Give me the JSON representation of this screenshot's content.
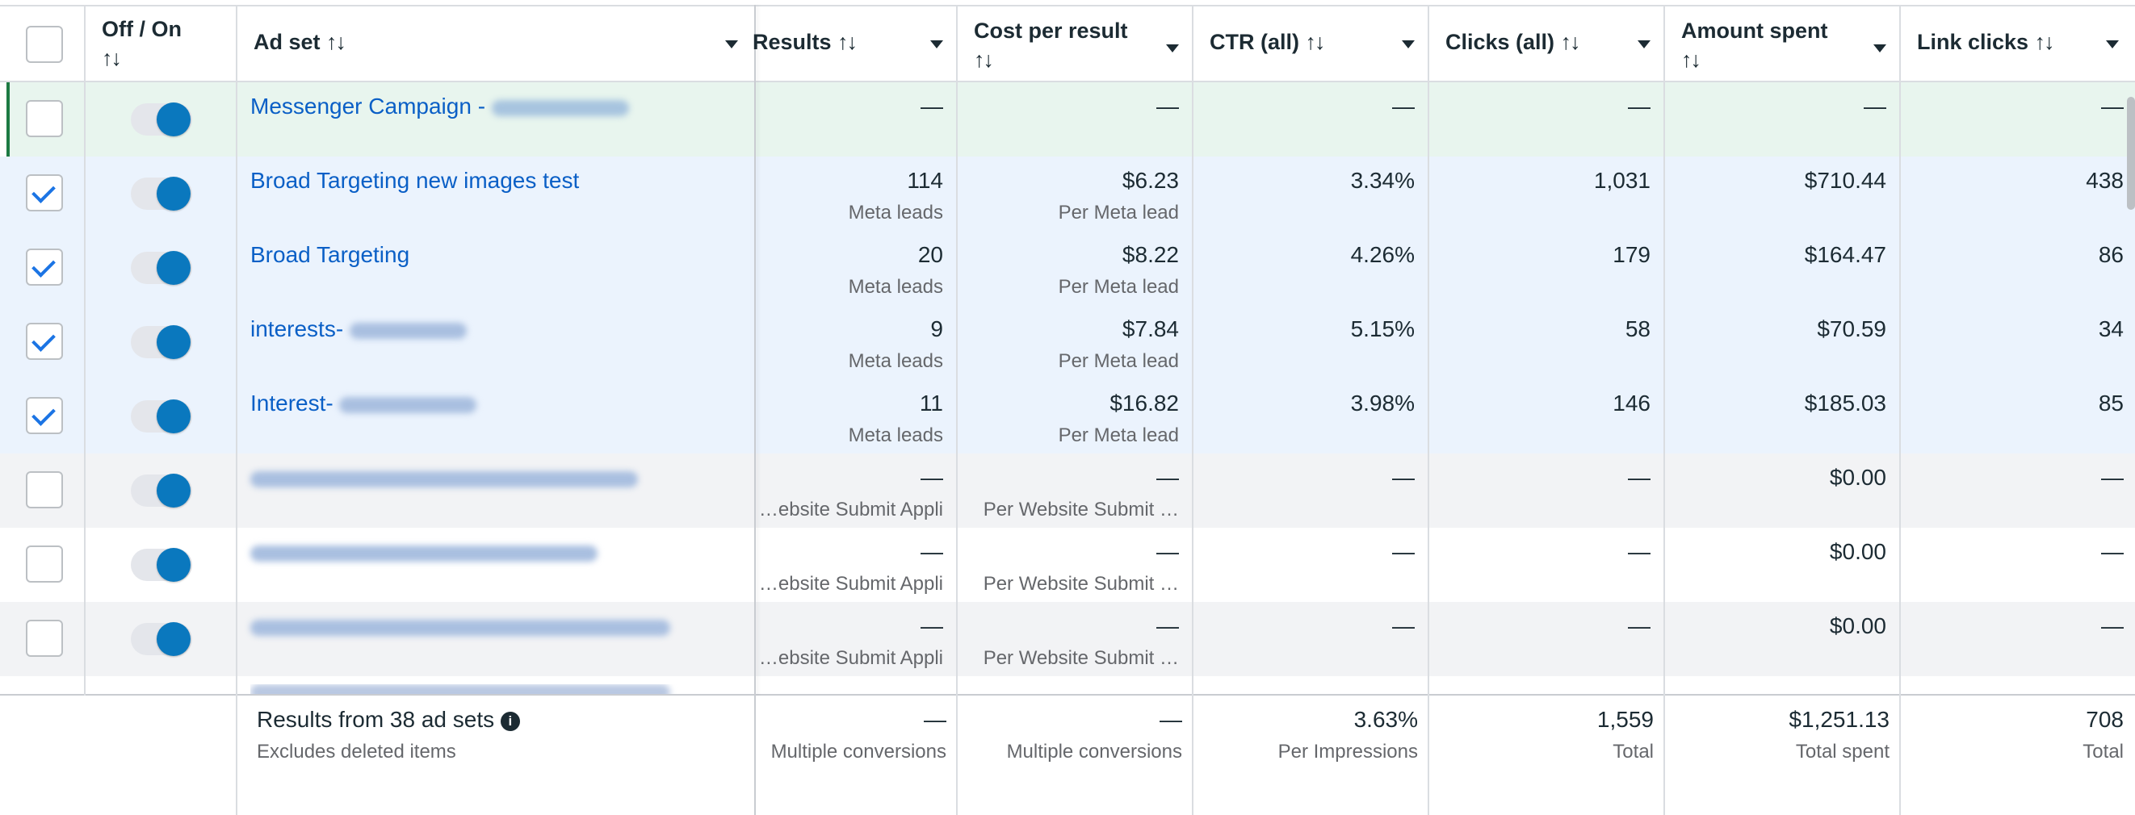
{
  "columns": {
    "off_on": "Off / On",
    "ad_set": "Ad set",
    "results": "Results",
    "cost_per_result": "Cost per result",
    "ctr": "CTR (all)",
    "clicks": "Clicks (all)",
    "amount_spent": "Amount spent",
    "link_clicks": "Link clicks",
    "sort_glyph": "↑↓"
  },
  "rows": [
    {
      "name": "Messenger Campaign - ",
      "results": "—",
      "results_sub": "",
      "cpr": "—",
      "cpr_sub": "",
      "ctr": "—",
      "clicks": "—",
      "spent": "—",
      "link": "—",
      "checked": false
    },
    {
      "name": "Broad Targeting new images test",
      "results": "114",
      "results_sub": "Meta leads",
      "cpr": "$6.23",
      "cpr_sub": "Per Meta lead",
      "ctr": "3.34%",
      "clicks": "1,031",
      "spent": "$710.44",
      "link": "438",
      "checked": true
    },
    {
      "name": "Broad Targeting",
      "results": "20",
      "results_sub": "Meta leads",
      "cpr": "$8.22",
      "cpr_sub": "Per Meta lead",
      "ctr": "4.26%",
      "clicks": "179",
      "spent": "$164.47",
      "link": "86",
      "checked": true
    },
    {
      "name": "interests- ",
      "results": "9",
      "results_sub": "Meta leads",
      "cpr": "$7.84",
      "cpr_sub": "Per Meta lead",
      "ctr": "5.15%",
      "clicks": "58",
      "spent": "$70.59",
      "link": "34",
      "checked": true
    },
    {
      "name": "Interest- ",
      "results": "11",
      "results_sub": "Meta leads",
      "cpr": "$16.82",
      "cpr_sub": "Per Meta lead",
      "ctr": "3.98%",
      "clicks": "146",
      "spent": "$185.03",
      "link": "85",
      "checked": true
    },
    {
      "name": "",
      "results": "—",
      "results_sub": "ebsite Submit Appli…",
      "cpr": "—",
      "cpr_sub": "Per Website Submit …",
      "ctr": "—",
      "clicks": "—",
      "spent": "$0.00",
      "link": "—",
      "checked": false
    },
    {
      "name": "",
      "results": "—",
      "results_sub": "ebsite Submit Appli…",
      "cpr": "—",
      "cpr_sub": "Per Website Submit …",
      "ctr": "—",
      "clicks": "—",
      "spent": "$0.00",
      "link": "—",
      "checked": false
    },
    {
      "name": "",
      "results": "—",
      "results_sub": "ebsite Submit Appli…",
      "cpr": "—",
      "cpr_sub": "Per Website Submit …",
      "ctr": "—",
      "clicks": "—",
      "spent": "$0.00",
      "link": "—",
      "checked": false
    }
  ],
  "totals": {
    "label": "Results from 38 ad sets",
    "sub": "Excludes deleted items",
    "results": "—",
    "results_sub": "Multiple conversions",
    "cpr": "—",
    "cpr_sub": "Multiple conversions",
    "ctr": "3.63%",
    "ctr_sub": "Per Impressions",
    "clicks": "1,559",
    "clicks_sub": "Total",
    "spent": "$1,251.13",
    "spent_sub": "Total spent",
    "link": "708",
    "link_sub": "Total"
  },
  "colors": {
    "link_blue": "#0a5fc6",
    "toggle_on": "#0a78be",
    "row_green": "#e8f5ee",
    "row_selected": "#ebf3fd",
    "row_gray": "#f2f3f5"
  }
}
